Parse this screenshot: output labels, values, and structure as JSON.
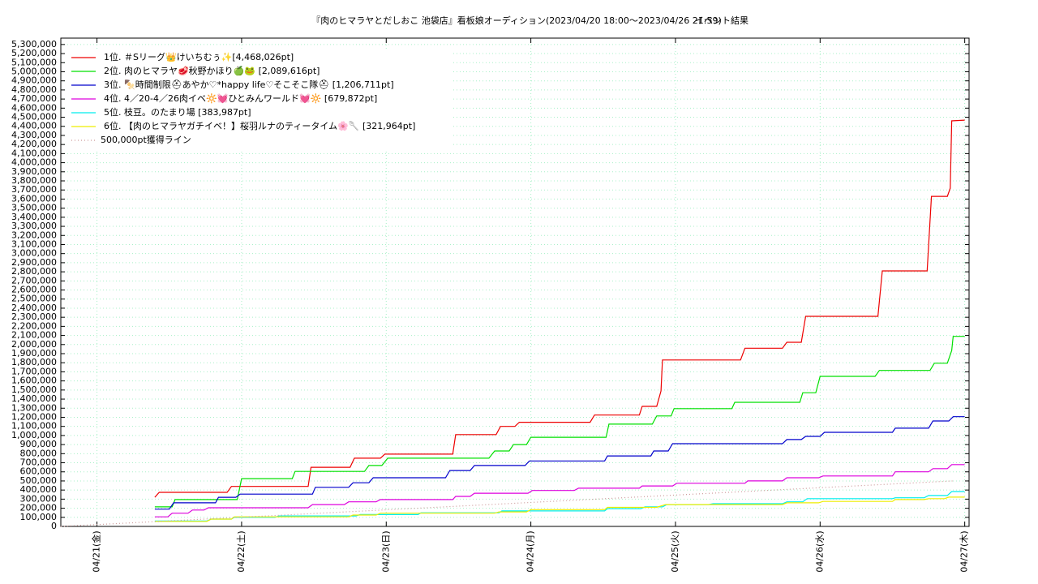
{
  "chart_data": {
    "type": "line",
    "title": "『肉のヒマラヤとだしおこ 池袋店』看板娘オーディション(2023/04/20 18:00～2023/04/26 21:59)",
    "subtitle": "イベント結果",
    "xlim": [
      -0.25,
      6.03
    ],
    "xticks": [
      {
        "value": 0,
        "label": "04/21(金)"
      },
      {
        "value": 1,
        "label": "04/22(土)"
      },
      {
        "value": 2,
        "label": "04/23(日)"
      },
      {
        "value": 3,
        "label": "04/24(月)"
      },
      {
        "value": 4,
        "label": "04/25(火)"
      },
      {
        "value": 5,
        "label": "04/26(水)"
      },
      {
        "value": 6,
        "label": "04/27(木)"
      }
    ],
    "ylim": [
      0,
      5370000
    ],
    "yticks": [
      0,
      {
        "value": 100000,
        "label": "100,000"
      },
      {
        "value": 200000,
        "label": "200,000"
      },
      {
        "value": 300000,
        "label": "300,000"
      },
      {
        "value": 400000,
        "label": "400,000"
      },
      {
        "value": 500000,
        "label": "500,000"
      },
      {
        "value": 600000,
        "label": "600,000"
      },
      {
        "value": 700000,
        "label": "700,000"
      },
      {
        "value": 800000,
        "label": "800,000"
      },
      {
        "value": 900000,
        "label": "900,000"
      },
      {
        "value": 1000000,
        "label": "1,000,000"
      },
      {
        "value": 1100000,
        "label": "1,100,000"
      },
      {
        "value": 1200000,
        "label": "1,200,000"
      },
      {
        "value": 1300000,
        "label": "1,300,000"
      },
      {
        "value": 1400000,
        "label": "1,400,000"
      },
      {
        "value": 1500000,
        "label": "1,500,000"
      },
      {
        "value": 1600000,
        "label": "1,600,000"
      },
      {
        "value": 1700000,
        "label": "1,700,000"
      },
      {
        "value": 1800000,
        "label": "1,800,000"
      },
      {
        "value": 1900000,
        "label": "1,900,000"
      },
      {
        "value": 2000000,
        "label": "2,000,000"
      },
      {
        "value": 2100000,
        "label": "2,100,000"
      },
      {
        "value": 2200000,
        "label": "2,200,000"
      },
      {
        "value": 2300000,
        "label": "2,300,000"
      },
      {
        "value": 2400000,
        "label": "2,400,000"
      },
      {
        "value": 2500000,
        "label": "2,500,000"
      },
      {
        "value": 2600000,
        "label": "2,600,000"
      },
      {
        "value": 2700000,
        "label": "2,700,000"
      },
      {
        "value": 2800000,
        "label": "2,800,000"
      },
      {
        "value": 2900000,
        "label": "2,900,000"
      },
      {
        "value": 3000000,
        "label": "3,000,000"
      },
      {
        "value": 3100000,
        "label": "3,100,000"
      },
      {
        "value": 3200000,
        "label": "3,200,000"
      },
      {
        "value": 3300000,
        "label": "3,300,000"
      },
      {
        "value": 3400000,
        "label": "3,400,000"
      },
      {
        "value": 3500000,
        "label": "3,500,000"
      },
      {
        "value": 3600000,
        "label": "3,600,000"
      },
      {
        "value": 3700000,
        "label": "3,700,000"
      },
      {
        "value": 3800000,
        "label": "3,800,000"
      },
      {
        "value": 3900000,
        "label": "3,900,000"
      },
      {
        "value": 4000000,
        "label": "4,000,000"
      },
      {
        "value": 4100000,
        "label": "4,100,000"
      },
      {
        "value": 4200000,
        "label": "4,200,000"
      },
      {
        "value": 4300000,
        "label": "4,300,000"
      },
      {
        "value": 4400000,
        "label": "4,400,000"
      },
      {
        "value": 4500000,
        "label": "4,500,000"
      },
      {
        "value": 4600000,
        "label": "4,600,000"
      },
      {
        "value": 4700000,
        "label": "4,700,000"
      },
      {
        "value": 4800000,
        "label": "4,800,000"
      },
      {
        "value": 4900000,
        "label": "4,900,000"
      },
      {
        "value": 5000000,
        "label": "5,000,000"
      },
      {
        "value": 5100000,
        "label": "5,100,000"
      },
      {
        "value": 5200000,
        "label": "5,200,000"
      },
      {
        "value": 5300000,
        "label": "5,300,000"
      }
    ],
    "grid": true,
    "legend": "upper-left",
    "series": [
      {
        "name": "1位. ＃Sリーグ👑けいちむぅ✨[4,468,026pt]",
        "color": "#ee0000",
        "x": [
          0.4,
          0.43,
          0.9,
          0.93,
          1.46,
          1.48,
          1.75,
          1.78,
          1.96,
          1.99,
          2.46,
          2.48,
          2.76,
          2.79,
          2.89,
          2.92,
          3.41,
          3.44,
          3.75,
          3.77,
          3.87,
          3.9,
          3.91,
          4.45,
          4.48,
          4.74,
          4.77,
          4.87,
          4.9,
          5.4,
          5.43,
          5.74,
          5.77,
          5.88,
          5.9,
          5.91,
          6.0
        ],
        "values": [
          320000,
          375000,
          375000,
          440000,
          440000,
          650000,
          650000,
          750000,
          750000,
          795000,
          795000,
          1010000,
          1010000,
          1100000,
          1100000,
          1145000,
          1145000,
          1225000,
          1225000,
          1320000,
          1320000,
          1490000,
          1830000,
          1830000,
          1960000,
          1960000,
          2025000,
          2025000,
          2310000,
          2310000,
          2810000,
          2810000,
          3630000,
          3630000,
          3720000,
          4460000,
          4468026
        ]
      },
      {
        "name": "2位. 肉のヒマラヤ🥩秋野かほり🍏🐸 [2,089,616pt]",
        "color": "#00e000",
        "x": [
          0.4,
          0.52,
          0.54,
          0.97,
          1.0,
          1.35,
          1.37,
          1.85,
          1.88,
          1.97,
          2.01,
          2.71,
          2.75,
          2.85,
          2.88,
          2.97,
          3.0,
          3.52,
          3.54,
          3.84,
          3.87,
          3.97,
          3.99,
          4.39,
          4.41,
          4.86,
          4.88,
          4.97,
          5.0,
          5.38,
          5.41,
          5.76,
          5.79,
          5.88,
          5.91,
          5.92,
          6.0
        ],
        "values": [
          215000,
          215000,
          295000,
          295000,
          525000,
          525000,
          605000,
          605000,
          670000,
          670000,
          750000,
          750000,
          830000,
          830000,
          900000,
          900000,
          980000,
          980000,
          1125000,
          1125000,
          1215000,
          1215000,
          1295000,
          1295000,
          1365000,
          1365000,
          1470000,
          1470000,
          1650000,
          1650000,
          1715000,
          1715000,
          1795000,
          1795000,
          1935000,
          2089616,
          2089616
        ]
      },
      {
        "name": "3位. 🍢時間制限⛑あやか♡*happy life♡そこそこ隊⛑ [1,206,711pt]",
        "color": "#0000cc",
        "x": [
          0.4,
          0.5,
          0.53,
          0.82,
          0.84,
          0.96,
          0.99,
          1.49,
          1.51,
          1.74,
          1.77,
          1.88,
          1.91,
          2.41,
          2.44,
          2.58,
          2.61,
          2.96,
          2.99,
          3.51,
          3.53,
          3.83,
          3.85,
          3.95,
          3.98,
          4.74,
          4.77,
          4.87,
          4.9,
          5.0,
          5.03,
          5.5,
          5.52,
          5.75,
          5.78,
          5.89,
          5.92,
          6.0
        ],
        "values": [
          190000,
          190000,
          260000,
          260000,
          320000,
          320000,
          355000,
          355000,
          430000,
          430000,
          480000,
          480000,
          535000,
          535000,
          615000,
          615000,
          670000,
          670000,
          720000,
          720000,
          775000,
          775000,
          830000,
          830000,
          910000,
          910000,
          955000,
          955000,
          990000,
          990000,
          1035000,
          1035000,
          1080000,
          1080000,
          1160000,
          1160000,
          1206711,
          1206711
        ]
      },
      {
        "name": "4位. 4／20-4／26肉イベ🔆💓ひとみんワールド💓🔆 [679,872pt]",
        "color": "#dd00dd",
        "x": [
          0.4,
          0.49,
          0.52,
          0.63,
          0.66,
          0.74,
          0.77,
          1.46,
          1.49,
          1.71,
          1.74,
          1.93,
          1.96,
          2.46,
          2.48,
          2.58,
          2.61,
          2.98,
          3.01,
          3.3,
          3.33,
          3.75,
          3.77,
          3.98,
          4.01,
          4.48,
          4.5,
          4.74,
          4.77,
          4.99,
          5.02,
          5.5,
          5.52,
          5.75,
          5.78,
          5.88,
          5.91,
          6.0
        ],
        "values": [
          105000,
          105000,
          145000,
          145000,
          180000,
          180000,
          205000,
          205000,
          240000,
          240000,
          270000,
          270000,
          295000,
          295000,
          330000,
          330000,
          365000,
          365000,
          395000,
          395000,
          420000,
          420000,
          445000,
          445000,
          475000,
          475000,
          500000,
          500000,
          535000,
          535000,
          555000,
          555000,
          600000,
          600000,
          635000,
          635000,
          679872,
          679872
        ]
      },
      {
        "name": "5位. 枝豆。のたまり場 [383,987pt]",
        "color": "#00eeee",
        "x": [
          0.4,
          0.76,
          0.79,
          0.93,
          0.95,
          1.23,
          1.26,
          1.79,
          1.82,
          2.22,
          2.24,
          2.78,
          2.8,
          3.51,
          3.53,
          3.76,
          3.79,
          3.91,
          3.94,
          4.23,
          4.26,
          4.74,
          4.77,
          4.88,
          4.91,
          5.5,
          5.52,
          5.72,
          5.75,
          5.88,
          5.91,
          6.0
        ],
        "values": [
          60000,
          60000,
          80000,
          80000,
          100000,
          100000,
          115000,
          115000,
          130000,
          130000,
          150000,
          150000,
          170000,
          170000,
          195000,
          195000,
          215000,
          215000,
          240000,
          240000,
          250000,
          250000,
          270000,
          270000,
          305000,
          305000,
          315000,
          315000,
          340000,
          340000,
          383987,
          383987
        ]
      },
      {
        "name": "6位. 【肉のヒマラヤガチイベ！】桜羽ルナのティータイム🌸🥄 [321,964pt]",
        "color": "#eeee00",
        "x": [
          0.4,
          0.76,
          0.79,
          0.93,
          0.95,
          1.74,
          1.77,
          1.93,
          1.96,
          2.75,
          2.78,
          2.97,
          3.0,
          3.51,
          3.53,
          3.87,
          3.93,
          4.74,
          4.77,
          4.99,
          5.02,
          5.5,
          5.52,
          5.72,
          5.75,
          5.86,
          5.89,
          6.0
        ],
        "values": [
          55000,
          55000,
          80000,
          80000,
          105000,
          105000,
          125000,
          125000,
          145000,
          145000,
          160000,
          160000,
          185000,
          185000,
          210000,
          210000,
          240000,
          240000,
          260000,
          260000,
          275000,
          275000,
          295000,
          295000,
          305000,
          305000,
          321964,
          321964
        ]
      },
      {
        "name": "500,000pt獲得ライン",
        "color": "#cc9999",
        "dashed": true,
        "x": [
          -0.25,
          5.92
        ],
        "values": [
          0,
          500000
        ]
      }
    ]
  }
}
